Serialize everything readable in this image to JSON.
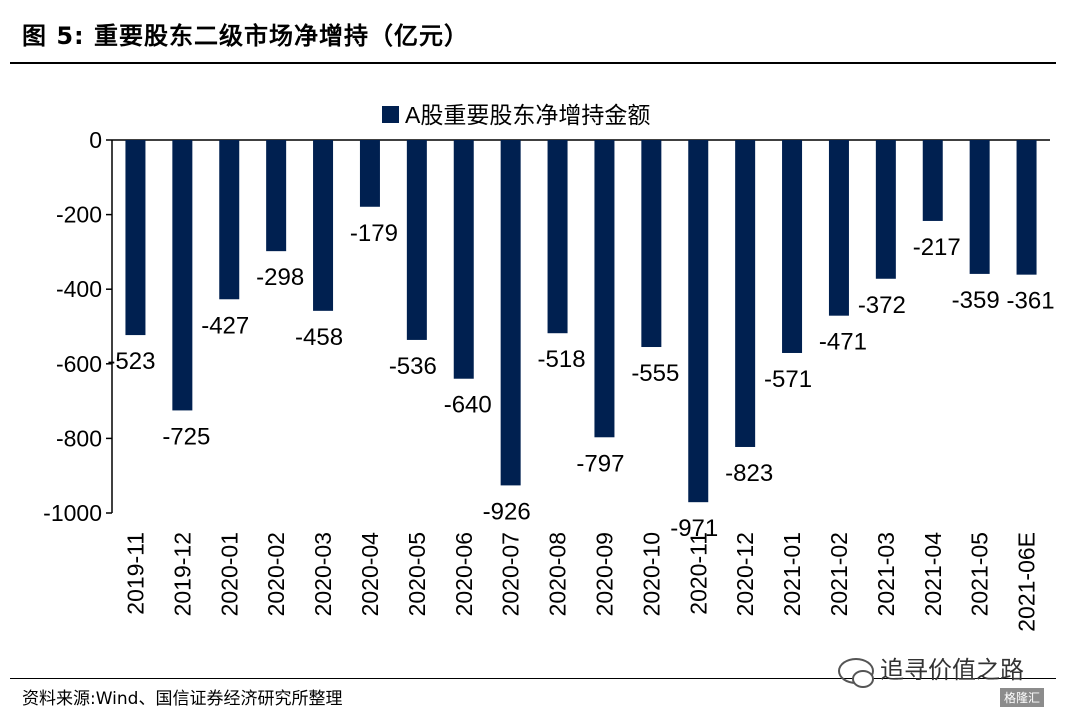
{
  "header": {
    "title": "图 5:  重要股东二级市场净增持（亿元）"
  },
  "chart_data": {
    "type": "bar",
    "categories": [
      "2019-11",
      "2019-12",
      "2020-01",
      "2020-02",
      "2020-03",
      "2020-04",
      "2020-05",
      "2020-06",
      "2020-07",
      "2020-08",
      "2020-09",
      "2020-10",
      "2020-11",
      "2020-12",
      "2021-01",
      "2021-02",
      "2021-03",
      "2021-04",
      "2021-05",
      "2021-06E"
    ],
    "series": [
      {
        "name": "A股重要股东净增持金额",
        "values": [
          -523,
          -725,
          -427,
          -298,
          -458,
          -179,
          -536,
          -640,
          -926,
          -518,
          -797,
          -555,
          -971,
          -823,
          -571,
          -471,
          -372,
          -217,
          -359,
          -361
        ]
      }
    ],
    "ylim": [
      -1000,
      0
    ],
    "yticks": [
      0,
      -200,
      -400,
      -600,
      -800,
      -1000
    ],
    "color": "#002050",
    "grid": false,
    "legend_position": "top-center",
    "data_labels": true
  },
  "footer": {
    "source": "资料来源:Wind、国信证券经济研究所整理",
    "watermark": "追寻价值之路",
    "logo": "格隆汇"
  }
}
